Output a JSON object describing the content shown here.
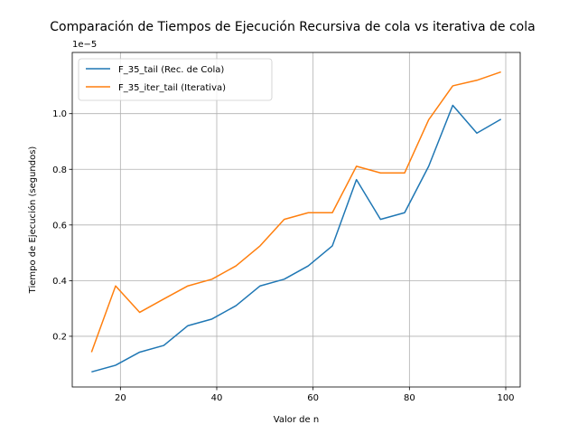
{
  "chart_data": {
    "type": "line",
    "title": "Comparación de Tiempos de Ejecución Recursiva de cola vs iterativa de cola",
    "xlabel": "Valor de n",
    "ylabel": "Tiempo de Ejecución (segundos)",
    "y_offset_label": "1e−5",
    "xlim": [
      10,
      103
    ],
    "ylim": [
      1.78e-07,
      1.22e-05
    ],
    "x_ticks": [
      20,
      40,
      60,
      80,
      100
    ],
    "x_tick_labels": [
      "20",
      "40",
      "60",
      "80",
      "100"
    ],
    "y_ticks": [
      2e-06,
      4e-06,
      6e-06,
      8e-06,
      1e-05
    ],
    "y_tick_labels": [
      "0.2",
      "0.4",
      "0.6",
      "0.8",
      "1.0"
    ],
    "grid": true,
    "legend_position": "top-left",
    "x": [
      14,
      19,
      24,
      29,
      34,
      39,
      44,
      49,
      54,
      59,
      64,
      69,
      74,
      79,
      84,
      89,
      94,
      99
    ],
    "series": [
      {
        "name": "F_35_tail (Rec. de Cola)",
        "color": "#1f77b4",
        "values": [
          7.2e-07,
          9.6e-07,
          1.43e-06,
          1.67e-06,
          2.38e-06,
          2.62e-06,
          3.1e-06,
          3.81e-06,
          4.05e-06,
          4.53e-06,
          5.25e-06,
          7.63e-06,
          6.2e-06,
          6.44e-06,
          8.11e-06,
          1.03e-05,
          9.3e-06,
          9.8e-06
        ]
      },
      {
        "name": "F_35_iter_tail (Iterativa)",
        "color": "#ff7f0e",
        "values": [
          1.43e-06,
          3.81e-06,
          2.86e-06,
          3.34e-06,
          3.81e-06,
          4.05e-06,
          4.53e-06,
          5.25e-06,
          6.2e-06,
          6.44e-06,
          6.44e-06,
          8.11e-06,
          7.87e-06,
          7.87e-06,
          9.78e-06,
          1.1e-05,
          1.12e-05,
          1.15e-05
        ]
      }
    ]
  }
}
